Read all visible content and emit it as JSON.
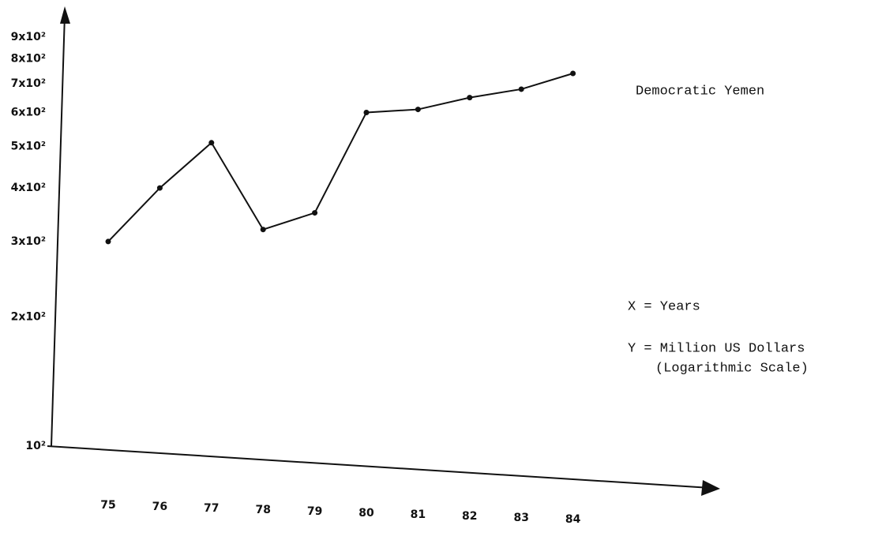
{
  "chart_data": {
    "type": "line",
    "categories": [
      "75",
      "76",
      "77",
      "78",
      "79",
      "80",
      "81",
      "82",
      "83",
      "84"
    ],
    "series": [
      {
        "name": "Democratic Yemen",
        "color": "#111111",
        "values": [
          300,
          400,
          510,
          320,
          350,
          600,
          610,
          650,
          680,
          740
        ]
      }
    ],
    "ylim": [
      100,
      1000
    ],
    "log_y": true,
    "grid": false,
    "yticks": [
      {
        "value": 100,
        "label": "10²"
      },
      {
        "value": 200,
        "label": "2x10²"
      },
      {
        "value": 300,
        "label": "3x10²"
      },
      {
        "value": 400,
        "label": "4x10²"
      },
      {
        "value": 500,
        "label": "5x10²"
      },
      {
        "value": 600,
        "label": "6x10²"
      },
      {
        "value": 700,
        "label": "7x10²"
      },
      {
        "value": 800,
        "label": "8x10²"
      },
      {
        "value": 900,
        "label": "9x10²"
      }
    ],
    "annotations": [
      "X = Years",
      "Y = Million US Dollars",
      "(Logarithmic Scale)"
    ]
  }
}
